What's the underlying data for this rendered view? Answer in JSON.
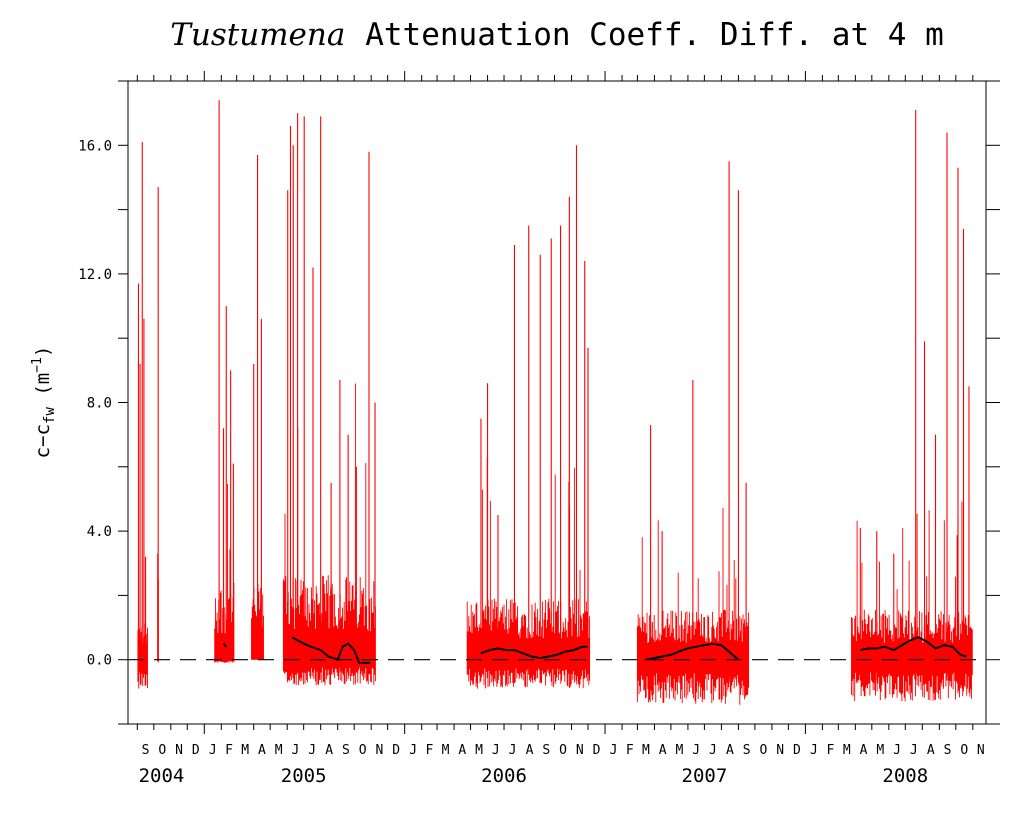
{
  "chart_data": {
    "type": "line",
    "title_italic": "Tustumena",
    "title_rest": "Attenuation Coeff. Diff. at 4 m",
    "ylabel": {
      "base": "c−c",
      "sub": "fw",
      "unit_open": " (m",
      "sup": "−1",
      "unit_close": ")"
    },
    "xlabel": "",
    "ylim": [
      -2.0,
      18.0
    ],
    "xlim": [
      "2004-08-15",
      "2008-11-25"
    ],
    "yticks": [
      0.0,
      4.0,
      8.0,
      12.0,
      16.0
    ],
    "ytick_labels": [
      "0.0",
      "4.0",
      "8.0",
      "12.0",
      "16.0"
    ],
    "month_labels": [
      "S",
      "O",
      "N",
      "D",
      "J",
      "F",
      "M",
      "A",
      "M",
      "J",
      "J",
      "A",
      "S",
      "O",
      "N",
      "D",
      "J",
      "F",
      "M",
      "A",
      "M",
      "J",
      "J",
      "A",
      "S",
      "O",
      "N",
      "D",
      "J",
      "F",
      "M",
      "A",
      "M",
      "J",
      "J",
      "A",
      "S",
      "O",
      "N",
      "D",
      "J",
      "F",
      "M",
      "A",
      "M",
      "J",
      "J",
      "A",
      "S",
      "O",
      "N"
    ],
    "month_starts": [
      "2004-09-01",
      "2004-10-01",
      "2004-11-01",
      "2004-12-01",
      "2005-01-01",
      "2005-02-01",
      "2005-03-01",
      "2005-04-01",
      "2005-05-01",
      "2005-06-01",
      "2005-07-01",
      "2005-08-01",
      "2005-09-01",
      "2005-10-01",
      "2005-11-01",
      "2005-12-01",
      "2006-01-01",
      "2006-02-01",
      "2006-03-01",
      "2006-04-01",
      "2006-05-01",
      "2006-06-01",
      "2006-07-01",
      "2006-08-01",
      "2006-09-01",
      "2006-10-01",
      "2006-11-01",
      "2006-12-01",
      "2007-01-01",
      "2007-02-01",
      "2007-03-01",
      "2007-04-01",
      "2007-05-01",
      "2007-06-01",
      "2007-07-01",
      "2007-08-01",
      "2007-09-01",
      "2007-10-01",
      "2007-11-01",
      "2007-12-01",
      "2008-01-01",
      "2008-02-01",
      "2008-03-01",
      "2008-04-01",
      "2008-05-01",
      "2008-06-01",
      "2008-07-01",
      "2008-08-01",
      "2008-09-01",
      "2008-10-01",
      "2008-11-01"
    ],
    "year_labels": [
      {
        "label": "2004",
        "date": "2004-10-15"
      },
      {
        "label": "2005",
        "date": "2005-07-01"
      },
      {
        "label": "2006",
        "date": "2006-07-01"
      },
      {
        "label": "2007",
        "date": "2007-07-01"
      },
      {
        "label": "2008",
        "date": "2008-07-01"
      }
    ],
    "zero_line": {
      "y": 0.0,
      "style": "dashed"
    },
    "grid": false,
    "legend": "none",
    "colors": {
      "raw": "#ff0000",
      "smoothed": "#000000",
      "axes": "#000000"
    },
    "series": [
      {
        "color": "#ff0000",
        "segments": [
          {
            "start": "2004-09-02",
            "end": "2004-09-20",
            "min": -0.9,
            "typ": 1.0,
            "peaks": [
              [
                "2004-09-03",
                11.7
              ],
              [
                "2004-09-06",
                9.2
              ],
              [
                "2004-09-10",
                16.1
              ],
              [
                "2004-09-13",
                10.6
              ],
              [
                "2004-09-16",
                3.2
              ]
            ]
          },
          {
            "start": "2004-10-08",
            "end": "2004-10-10",
            "min": -0.1,
            "typ": 3.0,
            "peaks": [
              [
                "2004-10-09",
                14.7
              ]
            ]
          },
          {
            "start": "2005-01-20",
            "end": "2005-02-25",
            "min": -0.1,
            "typ": 2.0,
            "peaks": [
              [
                "2005-01-28",
                17.4
              ],
              [
                "2005-02-05",
                7.2
              ],
              [
                "2005-02-10",
                11.0
              ],
              [
                "2005-02-18",
                9.0
              ],
              [
                "2005-02-23",
                6.1
              ]
            ]
          },
          {
            "start": "2005-03-28",
            "end": "2005-04-20",
            "min": 0.0,
            "typ": 2.0,
            "peaks": [
              [
                "2005-04-01",
                9.2
              ],
              [
                "2005-04-08",
                15.7
              ],
              [
                "2005-04-15",
                10.6
              ]
            ]
          },
          {
            "start": "2005-05-25",
            "end": "2005-11-10",
            "min": -0.8,
            "typ": 2.2,
            "peaks": [
              [
                "2005-06-02",
                14.6
              ],
              [
                "2005-06-07",
                16.6
              ],
              [
                "2005-06-12",
                16.0
              ],
              [
                "2005-06-20",
                17.0
              ],
              [
                "2005-07-02",
                16.9
              ],
              [
                "2005-07-18",
                12.2
              ],
              [
                "2005-08-01",
                16.9
              ],
              [
                "2005-08-20",
                5.5
              ],
              [
                "2005-09-05",
                8.7
              ],
              [
                "2005-09-20",
                7.0
              ],
              [
                "2005-10-05",
                6.0
              ],
              [
                "2005-10-28",
                15.8
              ],
              [
                "2005-11-08",
                8.0
              ]
            ]
          },
          {
            "start": "2006-04-25",
            "end": "2006-12-05",
            "min": -0.9,
            "typ": 1.6,
            "peaks": [
              [
                "2006-05-20",
                7.5
              ],
              [
                "2006-06-01",
                8.6
              ],
              [
                "2006-06-20",
                4.5
              ],
              [
                "2006-07-20",
                12.9
              ],
              [
                "2006-08-15",
                13.5
              ],
              [
                "2006-09-05",
                12.6
              ],
              [
                "2006-09-25",
                13.1
              ],
              [
                "2006-10-12",
                13.5
              ],
              [
                "2006-10-28",
                14.4
              ],
              [
                "2006-11-10",
                16.0
              ],
              [
                "2006-11-25",
                12.4
              ],
              [
                "2006-12-01",
                9.7
              ]
            ]
          },
          {
            "start": "2007-03-01",
            "end": "2007-09-20",
            "min": -1.4,
            "typ": 1.3,
            "peaks": [
              [
                "2007-03-25",
                7.3
              ],
              [
                "2007-04-15",
                4.0
              ],
              [
                "2007-06-10",
                8.7
              ],
              [
                "2007-08-15",
                15.5
              ],
              [
                "2007-09-01",
                14.6
              ],
              [
                "2007-09-15",
                5.5
              ]
            ]
          },
          {
            "start": "2008-03-25",
            "end": "2008-11-01",
            "min": -1.3,
            "typ": 1.3,
            "peaks": [
              [
                "2008-04-10",
                4.1
              ],
              [
                "2008-05-10",
                4.0
              ],
              [
                "2008-06-10",
                3.3
              ],
              [
                "2008-07-20",
                17.1
              ],
              [
                "2008-08-05",
                9.9
              ],
              [
                "2008-08-25",
                7.0
              ],
              [
                "2008-09-15",
                16.4
              ],
              [
                "2008-10-05",
                15.3
              ],
              [
                "2008-10-15",
                13.4
              ],
              [
                "2008-10-25",
                8.5
              ]
            ]
          }
        ]
      },
      {
        "color": "#000000",
        "smoothed": true,
        "segments": [
          {
            "x": [
              "2005-02-05",
              "2005-02-10"
            ],
            "y": [
              0.5,
              0.4
            ]
          },
          {
            "x": [
              "2005-06-10",
              "2005-06-20",
              "2005-07-01",
              "2005-07-15",
              "2005-08-01",
              "2005-08-15",
              "2005-09-01",
              "2005-09-10",
              "2005-09-20",
              "2005-10-01",
              "2005-10-10",
              "2005-10-20",
              "2005-10-30"
            ],
            "y": [
              0.7,
              0.6,
              0.5,
              0.4,
              0.3,
              0.1,
              0.0,
              0.4,
              0.5,
              0.3,
              -0.1,
              -0.1,
              -0.1
            ]
          },
          {
            "x": [
              "2006-05-20",
              "2006-06-05",
              "2006-06-20",
              "2006-07-05",
              "2006-07-20",
              "2006-08-05",
              "2006-08-20",
              "2006-09-05",
              "2006-09-20",
              "2006-10-05",
              "2006-10-20",
              "2006-11-05",
              "2006-11-20",
              "2006-11-30"
            ],
            "y": [
              0.2,
              0.3,
              0.35,
              0.3,
              0.3,
              0.2,
              0.1,
              0.05,
              0.1,
              0.15,
              0.25,
              0.3,
              0.4,
              0.4
            ]
          },
          {
            "x": [
              "2007-03-15",
              "2007-04-01",
              "2007-04-15",
              "2007-05-01",
              "2007-05-15",
              "2007-06-01",
              "2007-06-15",
              "2007-07-01",
              "2007-07-15",
              "2007-08-01",
              "2007-08-15",
              "2007-09-01"
            ],
            "y": [
              0.0,
              0.05,
              0.1,
              0.15,
              0.25,
              0.35,
              0.4,
              0.45,
              0.5,
              0.45,
              0.25,
              0.0
            ]
          },
          {
            "x": [
              "2008-04-10",
              "2008-04-25",
              "2008-05-10",
              "2008-05-25",
              "2008-06-10",
              "2008-06-25",
              "2008-07-10",
              "2008-07-25",
              "2008-08-10",
              "2008-08-25",
              "2008-09-10",
              "2008-09-25",
              "2008-10-10",
              "2008-10-20"
            ],
            "y": [
              0.3,
              0.35,
              0.35,
              0.4,
              0.3,
              0.45,
              0.6,
              0.7,
              0.55,
              0.35,
              0.45,
              0.4,
              0.15,
              0.1
            ]
          }
        ]
      }
    ]
  }
}
